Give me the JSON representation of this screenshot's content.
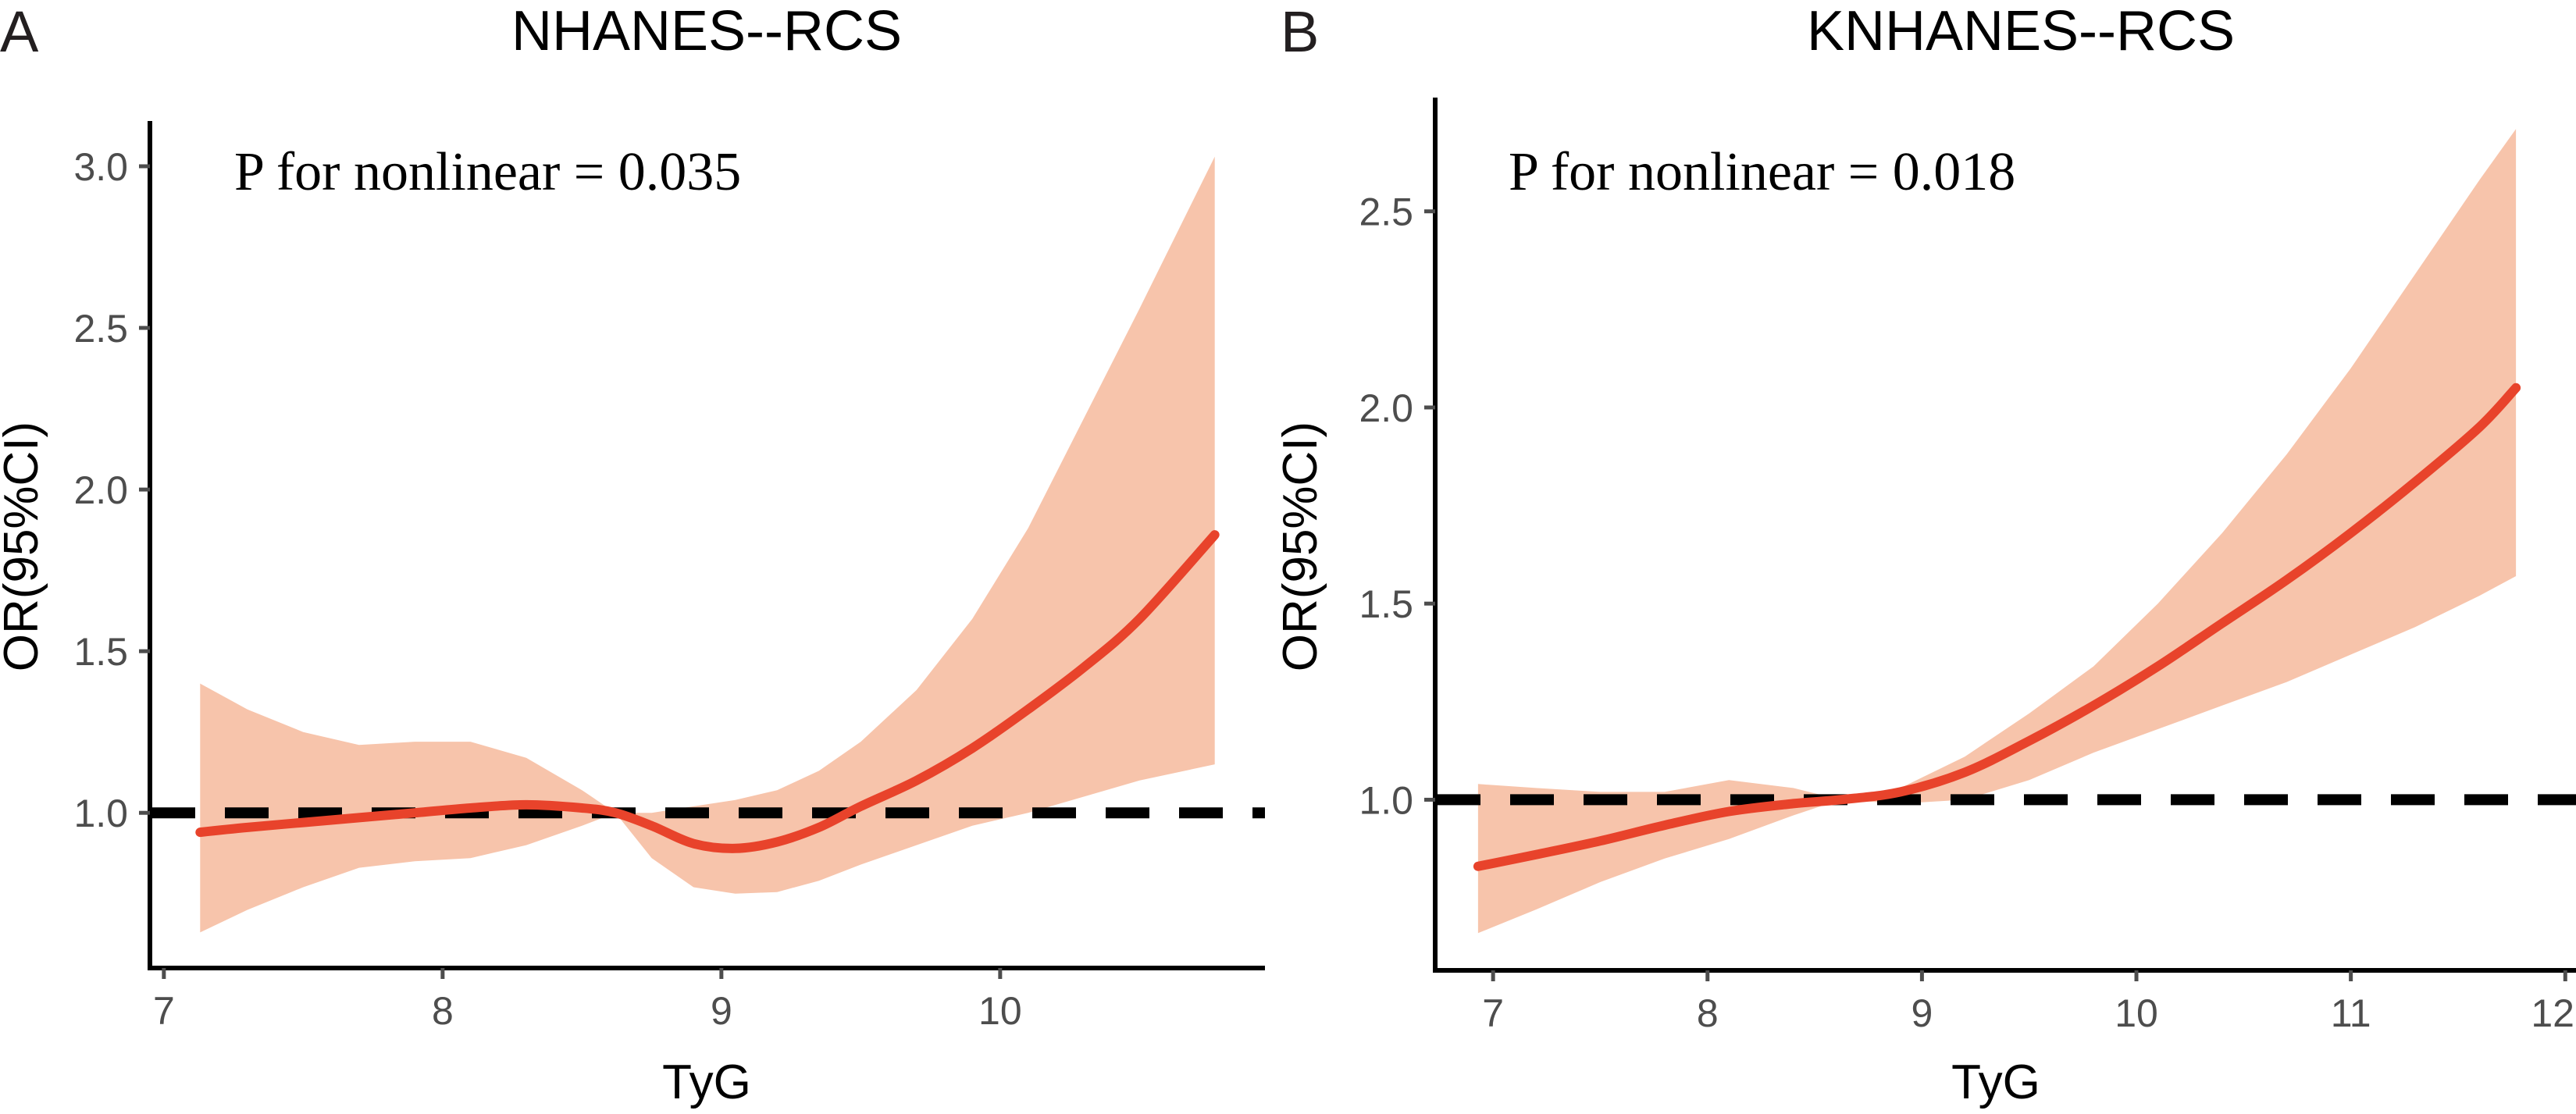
{
  "colors": {
    "curve": "#e8432b",
    "band": "#f7c4ab",
    "reference": "#000000",
    "axis": "#000000",
    "tick_text": "#4d4d4d"
  },
  "chart_data": [
    {
      "panel_letter": "A",
      "type": "line",
      "title": "NHANES--RCS",
      "xlabel": "TyG",
      "ylabel": "OR(95%CI)",
      "annotation": "P for nonlinear = 0.035",
      "xlim": [
        6.95,
        10.95
      ],
      "ylim": [
        0.52,
        3.14
      ],
      "xticks": [
        7,
        8,
        9,
        10
      ],
      "yticks": [
        1.0,
        1.5,
        2.0,
        2.5,
        3.0
      ],
      "xtick_labels": [
        "7",
        "8",
        "9",
        "10"
      ],
      "ytick_labels": [
        "1.0",
        "1.5",
        "2.0",
        "2.5",
        "3.0"
      ],
      "reference_y": 1.0,
      "grid": false,
      "series": [
        {
          "name": "OR",
          "x": [
            7.13,
            7.3,
            7.5,
            7.7,
            7.9,
            8.1,
            8.3,
            8.5,
            8.62,
            8.75,
            8.9,
            9.05,
            9.2,
            9.35,
            9.5,
            9.7,
            9.9,
            10.1,
            10.3,
            10.5,
            10.77
          ],
          "y": [
            0.94,
            0.955,
            0.97,
            0.985,
            1.0,
            1.015,
            1.025,
            1.015,
            1.0,
            0.96,
            0.905,
            0.89,
            0.91,
            0.955,
            1.02,
            1.1,
            1.2,
            1.32,
            1.45,
            1.6,
            1.86
          ],
          "lower": [
            0.63,
            0.7,
            0.77,
            0.83,
            0.85,
            0.86,
            0.9,
            0.96,
            1.0,
            0.86,
            0.77,
            0.75,
            0.755,
            0.79,
            0.84,
            0.9,
            0.96,
            1.0,
            1.05,
            1.1,
            1.15
          ],
          "upper": [
            1.4,
            1.32,
            1.25,
            1.21,
            1.22,
            1.22,
            1.17,
            1.07,
            1.0,
            1.0,
            1.02,
            1.04,
            1.07,
            1.13,
            1.22,
            1.38,
            1.6,
            1.88,
            2.22,
            2.56,
            3.03
          ]
        }
      ]
    },
    {
      "panel_letter": "B",
      "type": "line",
      "title": "KNHANES--RCS",
      "xlabel": "TyG",
      "ylabel": "OR(95%CI)",
      "annotation": "P for nonlinear = 0.018",
      "xlim": [
        6.73,
        12.05
      ],
      "ylim": [
        0.565,
        2.79
      ],
      "xticks": [
        7,
        8,
        9,
        10,
        11,
        12
      ],
      "yticks": [
        1.0,
        1.5,
        2.0,
        2.5
      ],
      "xtick_labels": [
        "7",
        "8",
        "9",
        "10",
        "11",
        "12"
      ],
      "ytick_labels": [
        "1.0",
        "1.5",
        "2.0",
        "2.5"
      ],
      "reference_y": 1.0,
      "grid": false,
      "series": [
        {
          "name": "OR",
          "x": [
            6.93,
            7.2,
            7.5,
            7.8,
            8.1,
            8.4,
            8.62,
            8.9,
            9.2,
            9.5,
            9.8,
            10.1,
            10.4,
            10.7,
            11.0,
            11.3,
            11.6,
            11.77
          ],
          "y": [
            0.83,
            0.86,
            0.895,
            0.935,
            0.97,
            0.99,
            1.0,
            1.02,
            1.07,
            1.15,
            1.24,
            1.34,
            1.45,
            1.56,
            1.68,
            1.81,
            1.95,
            2.05
          ],
          "lower": [
            0.66,
            0.72,
            0.79,
            0.85,
            0.9,
            0.96,
            1.0,
            0.99,
            1.0,
            1.05,
            1.12,
            1.18,
            1.24,
            1.3,
            1.37,
            1.44,
            1.52,
            1.57
          ],
          "upper": [
            1.04,
            1.03,
            1.02,
            1.02,
            1.05,
            1.03,
            1.0,
            1.03,
            1.11,
            1.22,
            1.34,
            1.5,
            1.68,
            1.88,
            2.1,
            2.34,
            2.58,
            2.71
          ]
        }
      ]
    }
  ]
}
